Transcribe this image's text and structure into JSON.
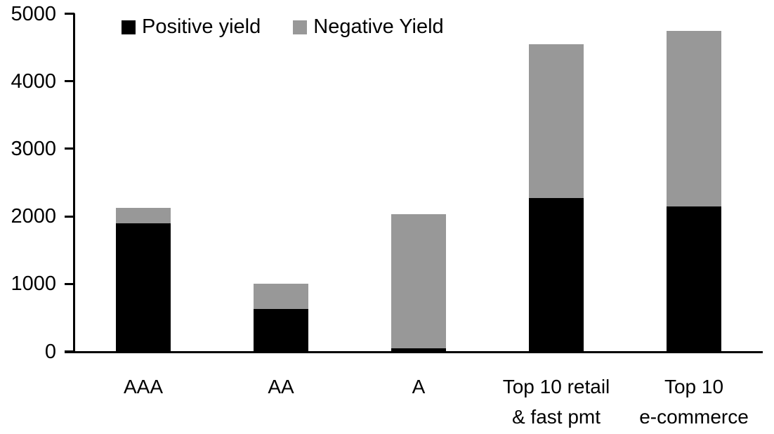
{
  "chart_data": {
    "type": "bar",
    "stacked": true,
    "title": "",
    "xlabel": "",
    "ylabel": "",
    "categories": [
      "AAA",
      "AA",
      "A",
      "Top 10 retail\n& fast pmt",
      "Top 10\ne-commerce"
    ],
    "series": [
      {
        "name": "Positive yield",
        "color": "#000000",
        "values": [
          1890,
          620,
          45,
          2270,
          2140
        ]
      },
      {
        "name": "Negative Yield",
        "color": "#989898",
        "values": [
          230,
          380,
          1985,
          2270,
          2600
        ]
      }
    ],
    "totals": [
      2120,
      1000,
      2030,
      4540,
      4740
    ],
    "ylim": [
      0,
      5000
    ],
    "yticks": [
      0,
      1000,
      2000,
      3000,
      4000,
      5000
    ],
    "grid": false,
    "legend_position": "top-inside",
    "background_color": "#ffffff",
    "axis_color": "#000000"
  }
}
